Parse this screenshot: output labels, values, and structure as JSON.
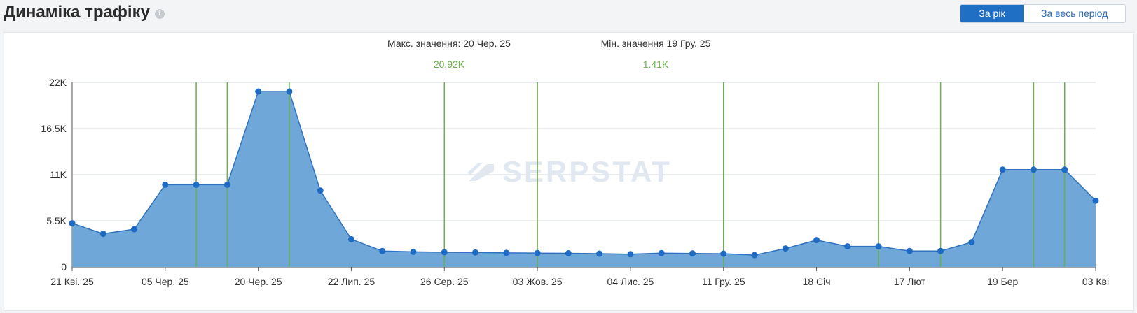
{
  "header": {
    "title": "Динаміка трафіку",
    "info_icon": "info-icon"
  },
  "toggle": {
    "year_label": "За рік",
    "all_label": "За весь період"
  },
  "stats": {
    "max_label": "Макс. значення: 20 Чер. 25",
    "max_value": "20.92K",
    "min_label": "Мін. значення 19 Гру. 25",
    "min_value": "1.41K"
  },
  "watermark": "SERPSTAT",
  "chart_data": {
    "type": "area",
    "ylim": [
      0,
      22000
    ],
    "yticks": [
      0,
      5500,
      11000,
      16500,
      22000
    ],
    "ytick_labels": [
      "0",
      "5.5K",
      "11K",
      "16.5K",
      "22K"
    ],
    "xtick_labels": [
      {
        "i": 0,
        "label": "21 Кві. 25"
      },
      {
        "i": 3,
        "label": "05 Чер. 25"
      },
      {
        "i": 6,
        "label": "20 Чер. 25"
      },
      {
        "i": 9,
        "label": "22 Лип. 25"
      },
      {
        "i": 12,
        "label": "26 Сер. 25"
      },
      {
        "i": 15,
        "label": "03 Жов. 25"
      },
      {
        "i": 18,
        "label": "04 Лис. 25"
      },
      {
        "i": 21,
        "label": "11 Гру. 25"
      },
      {
        "i": 24,
        "label": "18 Січ"
      },
      {
        "i": 27,
        "label": "17 Лют"
      },
      {
        "i": 30,
        "label": "19 Бер"
      },
      {
        "i": 33,
        "label": "03 Кві"
      }
    ],
    "values": [
      5200,
      3950,
      4500,
      9800,
      9800,
      9800,
      20920,
      20920,
      9100,
      3300,
      1900,
      1800,
      1750,
      1720,
      1680,
      1650,
      1620,
      1580,
      1520,
      1650,
      1600,
      1580,
      1410,
      2200,
      3200,
      2450,
      2450,
      1900,
      1900,
      2950,
      11600,
      11600,
      11600,
      7900
    ],
    "markers": [
      4,
      5,
      7,
      12,
      15,
      21,
      26,
      28,
      31,
      32
    ],
    "colors": {
      "fill": "#6fa7d9",
      "line": "#2f72c0",
      "point": "#1f6ac2",
      "grid": "#e4e7eb",
      "marker": "#6ab04c"
    }
  }
}
